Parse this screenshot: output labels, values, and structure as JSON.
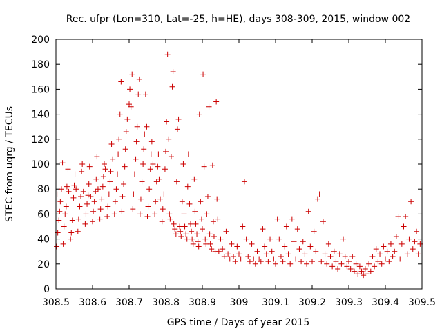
{
  "chart_data": {
    "type": "scatter",
    "title": "Rec. ufpr (Lon=310, Lat=-25, h=HE), days 308-309, 2015, window 002",
    "xlabel": "GPS time / Days of year 2015",
    "ylabel": "STEC from uqrg / TECUs",
    "xlim": [
      308.5,
      309.5
    ],
    "ylim": [
      0,
      200
    ],
    "x_ticks": [
      308.5,
      308.6,
      308.7,
      308.8,
      308.9,
      309,
      309.1,
      309.2,
      309.3,
      309.4,
      309.5
    ],
    "x_tick_labels": [
      "308.5",
      "308.6",
      "308.7",
      "308.8",
      "308.9",
      "309",
      "309.1",
      "309.2",
      "309.3",
      "309.4",
      "309.5"
    ],
    "y_ticks": [
      0,
      20,
      40,
      60,
      80,
      100,
      120,
      140,
      160,
      180,
      200
    ],
    "y_tick_labels": [
      "0",
      "20",
      "40",
      "60",
      "80",
      "100",
      "120",
      "140",
      "160",
      "180",
      "200"
    ],
    "grid": false,
    "legend": "none",
    "marker": "+",
    "marker_color": "#cc0000",
    "series": [
      {
        "name": "STEC",
        "points": [
          [
            308.502,
            34
          ],
          [
            308.505,
            45
          ],
          [
            308.508,
            55
          ],
          [
            308.51,
            62
          ],
          [
            308.503,
            76
          ],
          [
            308.512,
            70
          ],
          [
            308.515,
            80
          ],
          [
            308.518,
            101
          ],
          [
            308.52,
            36
          ],
          [
            308.522,
            50
          ],
          [
            308.525,
            60
          ],
          [
            308.528,
            66
          ],
          [
            308.53,
            82
          ],
          [
            308.533,
            96
          ],
          [
            308.535,
            78
          ],
          [
            308.54,
            40
          ],
          [
            308.542,
            45
          ],
          [
            308.545,
            55
          ],
          [
            308.548,
            73
          ],
          [
            308.55,
            83
          ],
          [
            308.552,
            92
          ],
          [
            308.555,
            80
          ],
          [
            308.56,
            46
          ],
          [
            308.562,
            56
          ],
          [
            308.565,
            66
          ],
          [
            308.568,
            74
          ],
          [
            308.57,
            94
          ],
          [
            308.572,
            100
          ],
          [
            308.575,
            78
          ],
          [
            308.58,
            52
          ],
          [
            308.582,
            60
          ],
          [
            308.585,
            68
          ],
          [
            308.588,
            75
          ],
          [
            308.59,
            84
          ],
          [
            308.592,
            98
          ],
          [
            308.595,
            74
          ],
          [
            308.6,
            54
          ],
          [
            308.602,
            62
          ],
          [
            308.605,
            70
          ],
          [
            308.608,
            78
          ],
          [
            308.61,
            88
          ],
          [
            308.612,
            106
          ],
          [
            308.615,
            80
          ],
          [
            308.62,
            56
          ],
          [
            308.622,
            64
          ],
          [
            308.625,
            72
          ],
          [
            308.628,
            82
          ],
          [
            308.63,
            90
          ],
          [
            308.632,
            100
          ],
          [
            308.635,
            96
          ],
          [
            308.64,
            58
          ],
          [
            308.642,
            66
          ],
          [
            308.645,
            76
          ],
          [
            308.648,
            86
          ],
          [
            308.65,
            94
          ],
          [
            308.652,
            116
          ],
          [
            308.655,
            104
          ],
          [
            308.66,
            60
          ],
          [
            308.662,
            70
          ],
          [
            308.665,
            80
          ],
          [
            308.668,
            92
          ],
          [
            308.67,
            108
          ],
          [
            308.672,
            120
          ],
          [
            308.675,
            140
          ],
          [
            308.678,
            166
          ],
          [
            308.68,
            62
          ],
          [
            308.682,
            74
          ],
          [
            308.685,
            84
          ],
          [
            308.688,
            98
          ],
          [
            308.69,
            112
          ],
          [
            308.692,
            126
          ],
          [
            308.695,
            136
          ],
          [
            308.7,
            148
          ],
          [
            308.702,
            160
          ],
          [
            308.705,
            146
          ],
          [
            308.708,
            172
          ],
          [
            308.71,
            64
          ],
          [
            308.712,
            76
          ],
          [
            308.715,
            92
          ],
          [
            308.718,
            104
          ],
          [
            308.72,
            118
          ],
          [
            308.722,
            130
          ],
          [
            308.725,
            156
          ],
          [
            308.728,
            168
          ],
          [
            308.73,
            60
          ],
          [
            308.732,
            72
          ],
          [
            308.735,
            86
          ],
          [
            308.738,
            100
          ],
          [
            308.74,
            112
          ],
          [
            308.742,
            124
          ],
          [
            308.745,
            156
          ],
          [
            308.748,
            130
          ],
          [
            308.75,
            58
          ],
          [
            308.752,
            66
          ],
          [
            308.755,
            80
          ],
          [
            308.758,
            96
          ],
          [
            308.76,
            108
          ],
          [
            308.762,
            118
          ],
          [
            308.765,
            100
          ],
          [
            308.77,
            60
          ],
          [
            308.772,
            70
          ],
          [
            308.775,
            86
          ],
          [
            308.778,
            98
          ],
          [
            308.78,
            108
          ],
          [
            308.782,
            88
          ],
          [
            308.785,
            72
          ],
          [
            308.79,
            54
          ],
          [
            308.792,
            64
          ],
          [
            308.795,
            76
          ],
          [
            308.798,
            96
          ],
          [
            308.8,
            110
          ],
          [
            308.802,
            134
          ],
          [
            308.805,
            188
          ],
          [
            308.808,
            120
          ],
          [
            308.81,
            60
          ],
          [
            308.812,
            56
          ],
          [
            308.815,
            106
          ],
          [
            308.818,
            162
          ],
          [
            308.82,
            174
          ],
          [
            308.822,
            52
          ],
          [
            308.825,
            48
          ],
          [
            308.828,
            44
          ],
          [
            308.83,
            86
          ],
          [
            308.832,
            128
          ],
          [
            308.835,
            136
          ],
          [
            308.838,
            50
          ],
          [
            308.84,
            46
          ],
          [
            308.842,
            42
          ],
          [
            308.845,
            70
          ],
          [
            308.848,
            100
          ],
          [
            308.85,
            60
          ],
          [
            308.852,
            50
          ],
          [
            308.855,
            44
          ],
          [
            308.858,
            40
          ],
          [
            308.86,
            82
          ],
          [
            308.862,
            108
          ],
          [
            308.865,
            68
          ],
          [
            308.868,
            52
          ],
          [
            308.87,
            46
          ],
          [
            308.872,
            40
          ],
          [
            308.875,
            36
          ],
          [
            308.878,
            88
          ],
          [
            308.88,
            62
          ],
          [
            308.882,
            52
          ],
          [
            308.885,
            44
          ],
          [
            308.888,
            38
          ],
          [
            308.89,
            34
          ],
          [
            308.892,
            140
          ],
          [
            308.895,
            70
          ],
          [
            308.898,
            56
          ],
          [
            308.9,
            48
          ],
          [
            308.902,
            172
          ],
          [
            308.905,
            98
          ],
          [
            308.908,
            40
          ],
          [
            308.91,
            36
          ],
          [
            308.912,
            60
          ],
          [
            308.915,
            74
          ],
          [
            308.918,
            146
          ],
          [
            308.92,
            44
          ],
          [
            308.922,
            36
          ],
          [
            308.925,
            32
          ],
          [
            308.928,
            99
          ],
          [
            308.93,
            54
          ],
          [
            308.932,
            42
          ],
          [
            308.935,
            30
          ],
          [
            308.938,
            150
          ],
          [
            308.94,
            72
          ],
          [
            308.942,
            56
          ],
          [
            308.945,
            30
          ],
          [
            308.95,
            40
          ],
          [
            308.955,
            32
          ],
          [
            308.96,
            26
          ],
          [
            308.965,
            46
          ],
          [
            308.97,
            28
          ],
          [
            308.975,
            24
          ],
          [
            308.98,
            36
          ],
          [
            308.985,
            26
          ],
          [
            308.99,
            22
          ],
          [
            308.995,
            34
          ],
          [
            309.0,
            28
          ],
          [
            309.005,
            24
          ],
          [
            309.01,
            50
          ],
          [
            309.015,
            86
          ],
          [
            309.02,
            40
          ],
          [
            309.025,
            26
          ],
          [
            309.03,
            22
          ],
          [
            309.035,
            36
          ],
          [
            309.04,
            24
          ],
          [
            309.045,
            20
          ],
          [
            309.05,
            30
          ],
          [
            309.055,
            24
          ],
          [
            309.06,
            22
          ],
          [
            309.065,
            48
          ],
          [
            309.07,
            34
          ],
          [
            309.075,
            28
          ],
          [
            309.08,
            22
          ],
          [
            309.085,
            40
          ],
          [
            309.09,
            30
          ],
          [
            309.095,
            24
          ],
          [
            309.1,
            20
          ],
          [
            309.105,
            56
          ],
          [
            309.11,
            40
          ],
          [
            309.115,
            26
          ],
          [
            309.12,
            22
          ],
          [
            309.125,
            34
          ],
          [
            309.13,
            50
          ],
          [
            309.135,
            28
          ],
          [
            309.14,
            20
          ],
          [
            309.145,
            56
          ],
          [
            309.15,
            38
          ],
          [
            309.155,
            24
          ],
          [
            309.16,
            48
          ],
          [
            309.165,
            32
          ],
          [
            309.17,
            22
          ],
          [
            309.175,
            38
          ],
          [
            309.18,
            28
          ],
          [
            309.185,
            20
          ],
          [
            309.19,
            62
          ],
          [
            309.195,
            34
          ],
          [
            309.2,
            22
          ],
          [
            309.205,
            46
          ],
          [
            309.21,
            30
          ],
          [
            309.215,
            72
          ],
          [
            309.22,
            76
          ],
          [
            309.225,
            22
          ],
          [
            309.23,
            54
          ],
          [
            309.235,
            28
          ],
          [
            309.24,
            20
          ],
          [
            309.245,
            36
          ],
          [
            309.25,
            26
          ],
          [
            309.255,
            18
          ],
          [
            309.26,
            30
          ],
          [
            309.265,
            22
          ],
          [
            309.27,
            16
          ],
          [
            309.275,
            28
          ],
          [
            309.28,
            20
          ],
          [
            309.285,
            40
          ],
          [
            309.29,
            26
          ],
          [
            309.295,
            18
          ],
          [
            309.3,
            22
          ],
          [
            309.305,
            16
          ],
          [
            309.31,
            26
          ],
          [
            309.315,
            14
          ],
          [
            309.32,
            20
          ],
          [
            309.325,
            12
          ],
          [
            309.33,
            18
          ],
          [
            309.335,
            14
          ],
          [
            309.34,
            11
          ],
          [
            309.345,
            16
          ],
          [
            309.35,
            12
          ],
          [
            309.355,
            20
          ],
          [
            309.36,
            14
          ],
          [
            309.365,
            26
          ],
          [
            309.37,
            18
          ],
          [
            309.375,
            32
          ],
          [
            309.38,
            22
          ],
          [
            309.385,
            28
          ],
          [
            309.39,
            20
          ],
          [
            309.395,
            34
          ],
          [
            309.4,
            24
          ],
          [
            309.405,
            30
          ],
          [
            309.41,
            22
          ],
          [
            309.415,
            36
          ],
          [
            309.42,
            26
          ],
          [
            309.425,
            30
          ],
          [
            309.43,
            42
          ],
          [
            309.435,
            58
          ],
          [
            309.44,
            24
          ],
          [
            309.445,
            36
          ],
          [
            309.45,
            50
          ],
          [
            309.455,
            58
          ],
          [
            309.46,
            28
          ],
          [
            309.465,
            40
          ],
          [
            309.47,
            70
          ],
          [
            309.475,
            32
          ],
          [
            309.48,
            38
          ],
          [
            309.485,
            46
          ],
          [
            309.49,
            28
          ],
          [
            309.495,
            36
          ]
        ]
      }
    ]
  }
}
